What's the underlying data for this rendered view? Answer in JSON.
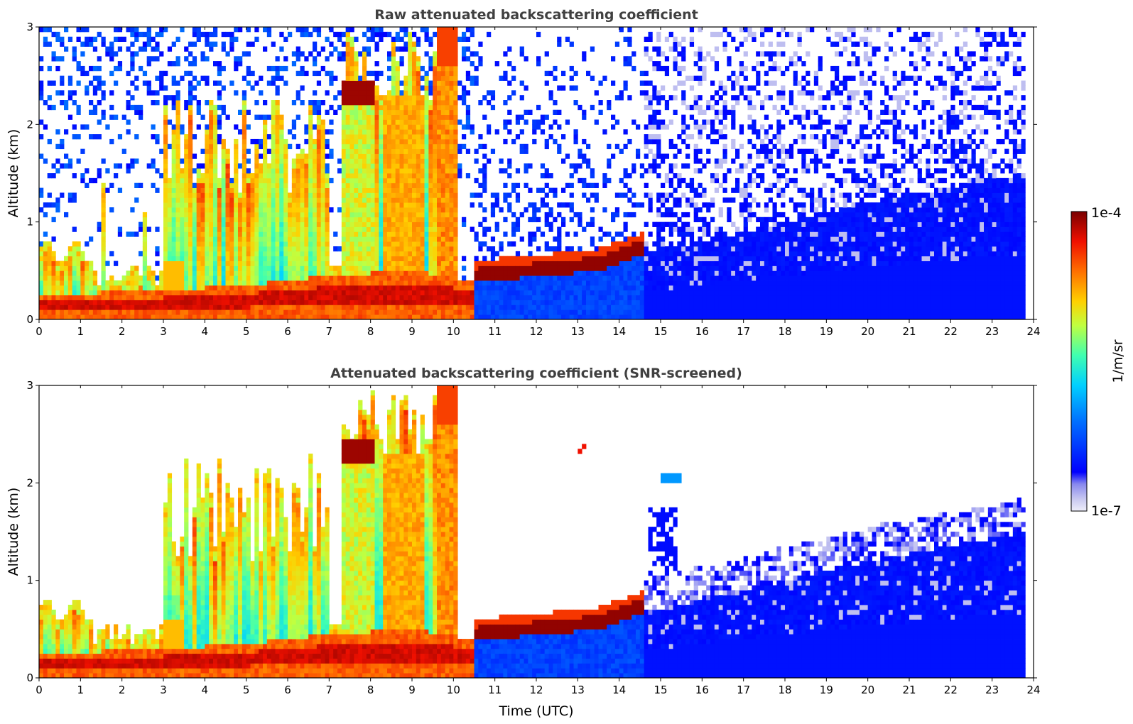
{
  "chart_data": [
    {
      "type": "heatmap",
      "title": "Raw attenuated backscattering coefficient",
      "xlabel": "",
      "ylabel": "Altitude (km)",
      "xlim": [
        0,
        24
      ],
      "ylim": [
        0,
        3
      ],
      "x_ticks": [
        "0",
        "1",
        "2",
        "3",
        "4",
        "5",
        "6",
        "7",
        "8",
        "9",
        "10",
        "11",
        "12",
        "13",
        "14",
        "15",
        "16",
        "17",
        "18",
        "19",
        "20",
        "21",
        "22",
        "23",
        "24"
      ],
      "y_ticks": [
        "0",
        "1",
        "2",
        "3"
      ],
      "screened": false,
      "surface_layer": [
        {
          "t": 0,
          "top_km": 0.25
        },
        {
          "t": 3,
          "top_km": 0.3
        },
        {
          "t": 5,
          "top_km": 0.35
        },
        {
          "t": 7,
          "top_km": 0.45
        },
        {
          "t": 9,
          "top_km": 0.5
        },
        {
          "t": 10.5,
          "top_km": 0.4
        },
        {
          "t": 12,
          "top_km": 0.45
        },
        {
          "t": 14,
          "top_km": 0.55
        },
        {
          "t": 14.6,
          "top_km": 0.65
        },
        {
          "t": 16,
          "top_km": 0.8
        },
        {
          "t": 18,
          "top_km": 1.0
        },
        {
          "t": 20,
          "top_km": 1.2
        },
        {
          "t": 23.8,
          "top_km": 1.5
        }
      ],
      "cloud_features": [
        {
          "t_start": 7.3,
          "t_end": 8.1,
          "base_km": 2.25,
          "top_km": 2.45,
          "level": "1e-4"
        },
        {
          "t_start": 10.5,
          "t_end": 14.6,
          "base_km": 0.4,
          "top_km": 0.65,
          "level": "1e-4"
        },
        {
          "t_start": 9.5,
          "t_end": 10.1,
          "base_km": 0.0,
          "top_km": 3.0,
          "level": "~1e-5"
        },
        {
          "t_start": 3.0,
          "t_end": 7.0,
          "base_km": 0.0,
          "top_km": 2.3,
          "level": "~1e-5"
        }
      ],
      "data_end_utc": 23.8
    },
    {
      "type": "heatmap",
      "title": "Attenuated backscattering coefficient (SNR-screened)",
      "xlabel": "Time (UTC)",
      "ylabel": "Altitude (km)",
      "xlim": [
        0,
        24
      ],
      "ylim": [
        0,
        3
      ],
      "x_ticks": [
        "0",
        "1",
        "2",
        "3",
        "4",
        "5",
        "6",
        "7",
        "8",
        "9",
        "10",
        "11",
        "12",
        "13",
        "14",
        "15",
        "16",
        "17",
        "18",
        "19",
        "20",
        "21",
        "22",
        "23",
        "24"
      ],
      "y_ticks": [
        "0",
        "1",
        "2",
        "3"
      ],
      "screened": true,
      "surface_layer": [
        {
          "t": 0,
          "top_km": 0.25
        },
        {
          "t": 3,
          "top_km": 0.3
        },
        {
          "t": 5,
          "top_km": 0.35
        },
        {
          "t": 7,
          "top_km": 0.45
        },
        {
          "t": 9,
          "top_km": 0.5
        },
        {
          "t": 10.5,
          "top_km": 0.4
        },
        {
          "t": 12,
          "top_km": 0.45
        },
        {
          "t": 14,
          "top_km": 0.55
        },
        {
          "t": 14.6,
          "top_km": 0.65
        },
        {
          "t": 16,
          "top_km": 0.8
        },
        {
          "t": 18,
          "top_km": 1.0
        },
        {
          "t": 20,
          "top_km": 1.2
        },
        {
          "t": 23.8,
          "top_km": 1.5
        }
      ],
      "cloud_features": [
        {
          "t_start": 7.3,
          "t_end": 8.1,
          "base_km": 2.25,
          "top_km": 2.45,
          "level": "1e-4"
        },
        {
          "t_start": 10.5,
          "t_end": 14.6,
          "base_km": 0.4,
          "top_km": 0.65,
          "level": "1e-4"
        },
        {
          "t_start": 9.5,
          "t_end": 10.1,
          "base_km": 0.0,
          "top_km": 3.0,
          "level": "~1e-5"
        },
        {
          "t_start": 3.0,
          "t_end": 7.0,
          "base_km": 0.0,
          "top_km": 2.3,
          "level": "~1e-5"
        }
      ],
      "data_end_utc": 23.8
    }
  ],
  "colorbar": {
    "label": "1/m/sr",
    "max_label": "1e-4",
    "min_label": "1e-7",
    "scale": "log",
    "colormap": "jet with light-lavender low end",
    "colors": [
      "#e8e8f8",
      "#c8c8f0",
      "#0000ff",
      "#0060ff",
      "#00c0ff",
      "#40ffb0",
      "#c0ff40",
      "#ffd000",
      "#ff7000",
      "#ff2000",
      "#c00000",
      "#800000"
    ]
  }
}
